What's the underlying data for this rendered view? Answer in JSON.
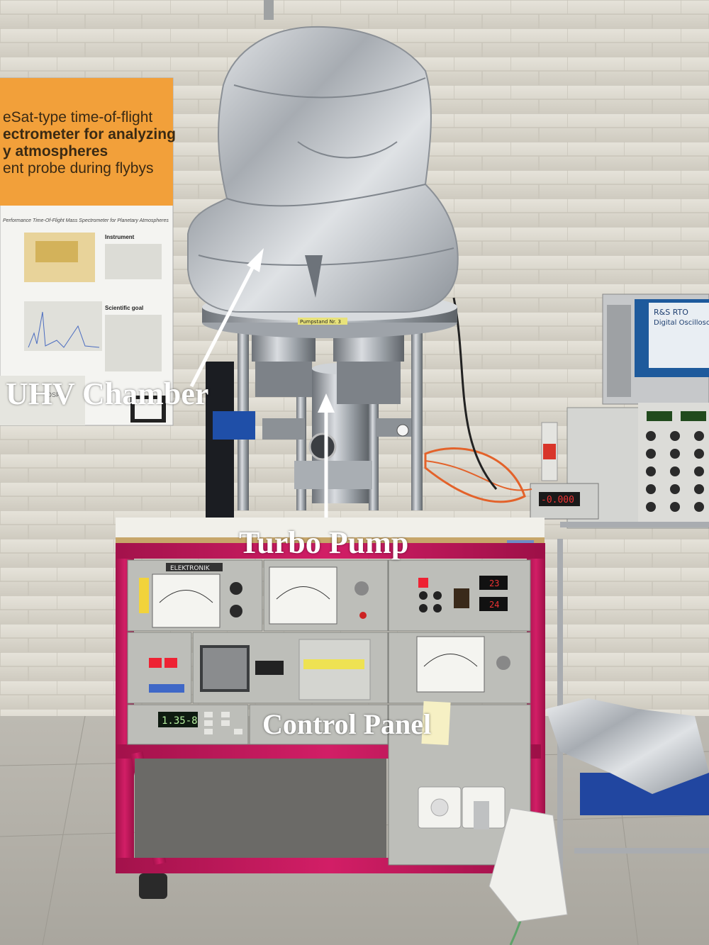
{
  "annotations": {
    "uhv_chamber": "UHV Chamber",
    "turbo_pump": "Turbo Pump",
    "control_panel": "Control Panel"
  },
  "poster": {
    "headline_line1": "eSat-type time-of-flight",
    "headline_line2": "ectrometer for analyzing",
    "headline_line3": "y atmospheres",
    "headline_line4": "ent probe during flybys",
    "subtitle": "Performance Time-Of-Flight Mass Spectrometer for Planetary Atmospheres",
    "section_instrument": "Instrument",
    "section_goal": "Scientific goal",
    "footer_logo": "OSPA"
  },
  "equipment": {
    "pump_stand_plate": "Pumpstand Nr. 3",
    "panel_header": "ELEKTRONIK",
    "oscilloscope_brand": "R&S RTO",
    "oscilloscope_model": "Digital Oscilloscope",
    "gauge_readout": "1.35-8",
    "meter_readout": "-0.000",
    "temp_readout_1": "23",
    "temp_readout_2": "24"
  },
  "colors": {
    "frame_magenta": "#c2185b",
    "poster_orange": "#f2a03a",
    "foil": "#c8cbcf",
    "wall": "#dedbd2",
    "panel_grey": "#b8b9b4",
    "annotation_text": "#ffffff"
  }
}
